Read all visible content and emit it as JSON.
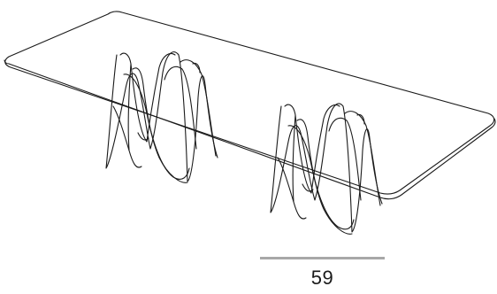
{
  "colors": {
    "stroke": "#1a1a1a",
    "dimension_line": "#a8a8a8",
    "background": "#ffffff"
  },
  "dimension": {
    "value": "59"
  }
}
